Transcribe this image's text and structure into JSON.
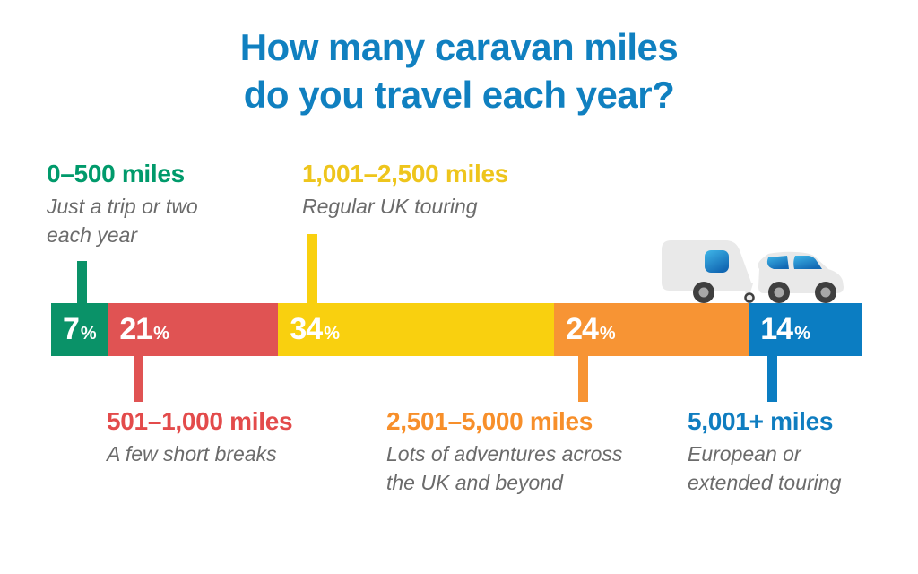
{
  "title": {
    "line1": "How many caravan miles",
    "line2": "do you travel each year?"
  },
  "percent_sign": "%",
  "colors": {
    "title": "#1080c0",
    "description_text": "#6b6b6b",
    "background": "#ffffff"
  },
  "icon": {
    "name": "caravan-and-car-icon",
    "body": "#e9e9e9",
    "window_top": "#3fb6e8",
    "window_bottom": "#1268b3",
    "tire": "#3f3f3f",
    "hub": "#a8a8a8"
  },
  "chart_data": {
    "type": "bar",
    "variant": "horizontal-stacked-percentage",
    "title": "How many caravan miles do you travel each year?",
    "unit": "%",
    "total": 100,
    "legend_position": "callouts-above-and-below",
    "categories": [
      "0–500 miles",
      "501–1,000 miles",
      "1,001–2,500 miles",
      "2,501–5,000 miles",
      "5,001+ miles"
    ],
    "values": [
      7,
      21,
      34,
      24,
      14
    ],
    "segments": [
      {
        "range": "0–500 miles",
        "description": "Just a trip or two each year",
        "value": 7,
        "bar_color": "#0a9268",
        "label_color": "#009a6b",
        "callout": "above"
      },
      {
        "range": "501–1,000 miles",
        "description": "A few short breaks",
        "value": 21,
        "bar_color": "#e05353",
        "label_color": "#e34b4b",
        "callout": "below"
      },
      {
        "range": "1,001–2,500 miles",
        "description": "Regular UK touring",
        "value": 34,
        "bar_color": "#f9d00f",
        "label_color": "#eec51c",
        "callout": "above"
      },
      {
        "range": "2,501–5,000 miles",
        "description": "Lots of adventures across the UK and beyond",
        "value": 24,
        "bar_color": "#f79434",
        "label_color": "#f78f2a",
        "callout": "below"
      },
      {
        "range": "5,001+ miles",
        "description": "European or extended touring",
        "value": 14,
        "bar_color": "#0b7dc2",
        "label_color": "#0f7dc0",
        "callout": "below"
      }
    ]
  }
}
